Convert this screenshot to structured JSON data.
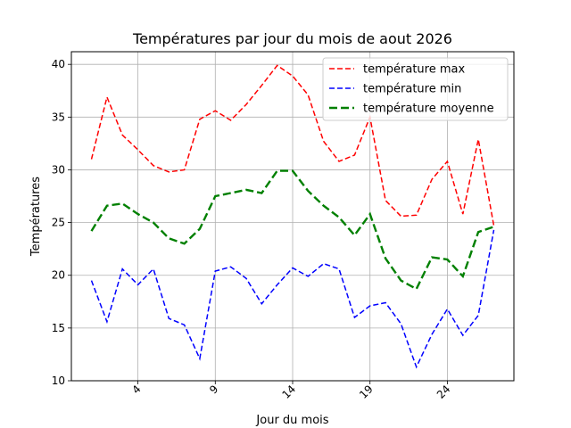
{
  "chart_data": {
    "type": "line",
    "title": "Températures par jour du mois de aout 2026",
    "xlabel": "Jour du mois",
    "ylabel": "Températures",
    "x": [
      1,
      2,
      3,
      4,
      5,
      6,
      7,
      8,
      9,
      10,
      11,
      12,
      13,
      14,
      15,
      16,
      17,
      18,
      19,
      20,
      21,
      22,
      23,
      24,
      25,
      26,
      27
    ],
    "xticks": [
      4,
      9,
      14,
      19,
      24
    ],
    "xticks_rotation": 45,
    "xlim": [
      -0.3,
      28.3
    ],
    "ylim": [
      10,
      41.2
    ],
    "yticks": [
      10,
      15,
      20,
      25,
      30,
      35,
      40
    ],
    "grid": true,
    "legend_position": "top-right",
    "series": [
      {
        "name": "température max",
        "color": "#ff0000",
        "style": "dashed",
        "values": [
          31.0,
          36.9,
          33.3,
          31.9,
          30.4,
          29.8,
          30.0,
          34.8,
          35.6,
          34.7,
          36.2,
          38.0,
          39.9,
          38.9,
          37.1,
          32.7,
          30.8,
          31.4,
          35.0,
          27.1,
          25.6,
          25.7,
          29.1,
          30.8,
          25.8,
          32.9,
          24.7
        ]
      },
      {
        "name": "température min",
        "color": "#0000ff",
        "style": "dashed",
        "values": [
          19.5,
          15.6,
          20.6,
          19.1,
          20.6,
          15.9,
          15.3,
          12.1,
          20.4,
          20.8,
          19.7,
          17.3,
          19.1,
          20.7,
          19.9,
          21.1,
          20.6,
          16.0,
          17.1,
          17.4,
          15.4,
          11.3,
          14.4,
          16.8,
          14.3,
          16.2,
          24.3
        ]
      },
      {
        "name": "température moyenne",
        "color": "#008000",
        "style": "dashed-bold",
        "values": [
          24.2,
          26.6,
          26.8,
          25.8,
          25.0,
          23.5,
          23.0,
          24.4,
          27.5,
          27.8,
          28.1,
          27.8,
          29.9,
          29.9,
          28.0,
          26.6,
          25.5,
          23.8,
          25.8,
          21.6,
          19.5,
          18.7,
          21.7,
          21.5,
          19.9,
          24.1,
          24.6
        ]
      }
    ]
  }
}
